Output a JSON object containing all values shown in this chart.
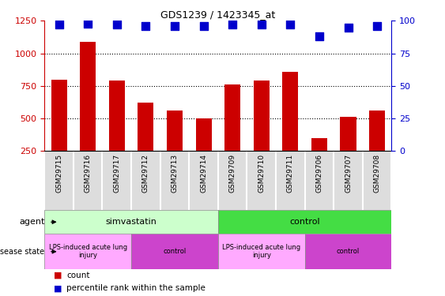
{
  "title": "GDS1239 / 1423345_at",
  "samples": [
    "GSM29715",
    "GSM29716",
    "GSM29717",
    "GSM29712",
    "GSM29713",
    "GSM29714",
    "GSM29709",
    "GSM29710",
    "GSM29711",
    "GSM29706",
    "GSM29707",
    "GSM29708"
  ],
  "counts": [
    800,
    1090,
    790,
    620,
    560,
    500,
    760,
    790,
    860,
    350,
    510,
    560
  ],
  "percentiles": [
    97,
    98,
    97,
    96,
    96,
    96,
    97,
    97,
    97,
    88,
    95,
    96
  ],
  "bar_color": "#cc0000",
  "dot_color": "#0000cc",
  "ylim_left": [
    250,
    1250
  ],
  "ylim_right": [
    0,
    100
  ],
  "yticks_left": [
    250,
    500,
    750,
    1000,
    1250
  ],
  "yticks_right": [
    0,
    25,
    50,
    75,
    100
  ],
  "grid_values": [
    500,
    750,
    1000
  ],
  "agent_groups": [
    {
      "label": "simvastatin",
      "start": 0,
      "end": 6,
      "color": "#ccffcc",
      "edge_color": "#888888"
    },
    {
      "label": "control",
      "start": 6,
      "end": 12,
      "color": "#44dd44",
      "edge_color": "#888888"
    }
  ],
  "disease_groups": [
    {
      "label": "LPS-induced acute lung\ninjury",
      "start": 0,
      "end": 3,
      "color": "#ffaaff",
      "edge_color": "#888888"
    },
    {
      "label": "control",
      "start": 3,
      "end": 6,
      "color": "#cc44cc",
      "edge_color": "#888888"
    },
    {
      "label": "LPS-induced acute lung\ninjury",
      "start": 6,
      "end": 9,
      "color": "#ffaaff",
      "edge_color": "#888888"
    },
    {
      "label": "control",
      "start": 9,
      "end": 12,
      "color": "#cc44cc",
      "edge_color": "#888888"
    }
  ],
  "legend_items": [
    {
      "label": "count",
      "color": "#cc0000"
    },
    {
      "label": "percentile rank within the sample",
      "color": "#0000cc"
    }
  ],
  "dot_size": 45,
  "bar_width": 0.55
}
